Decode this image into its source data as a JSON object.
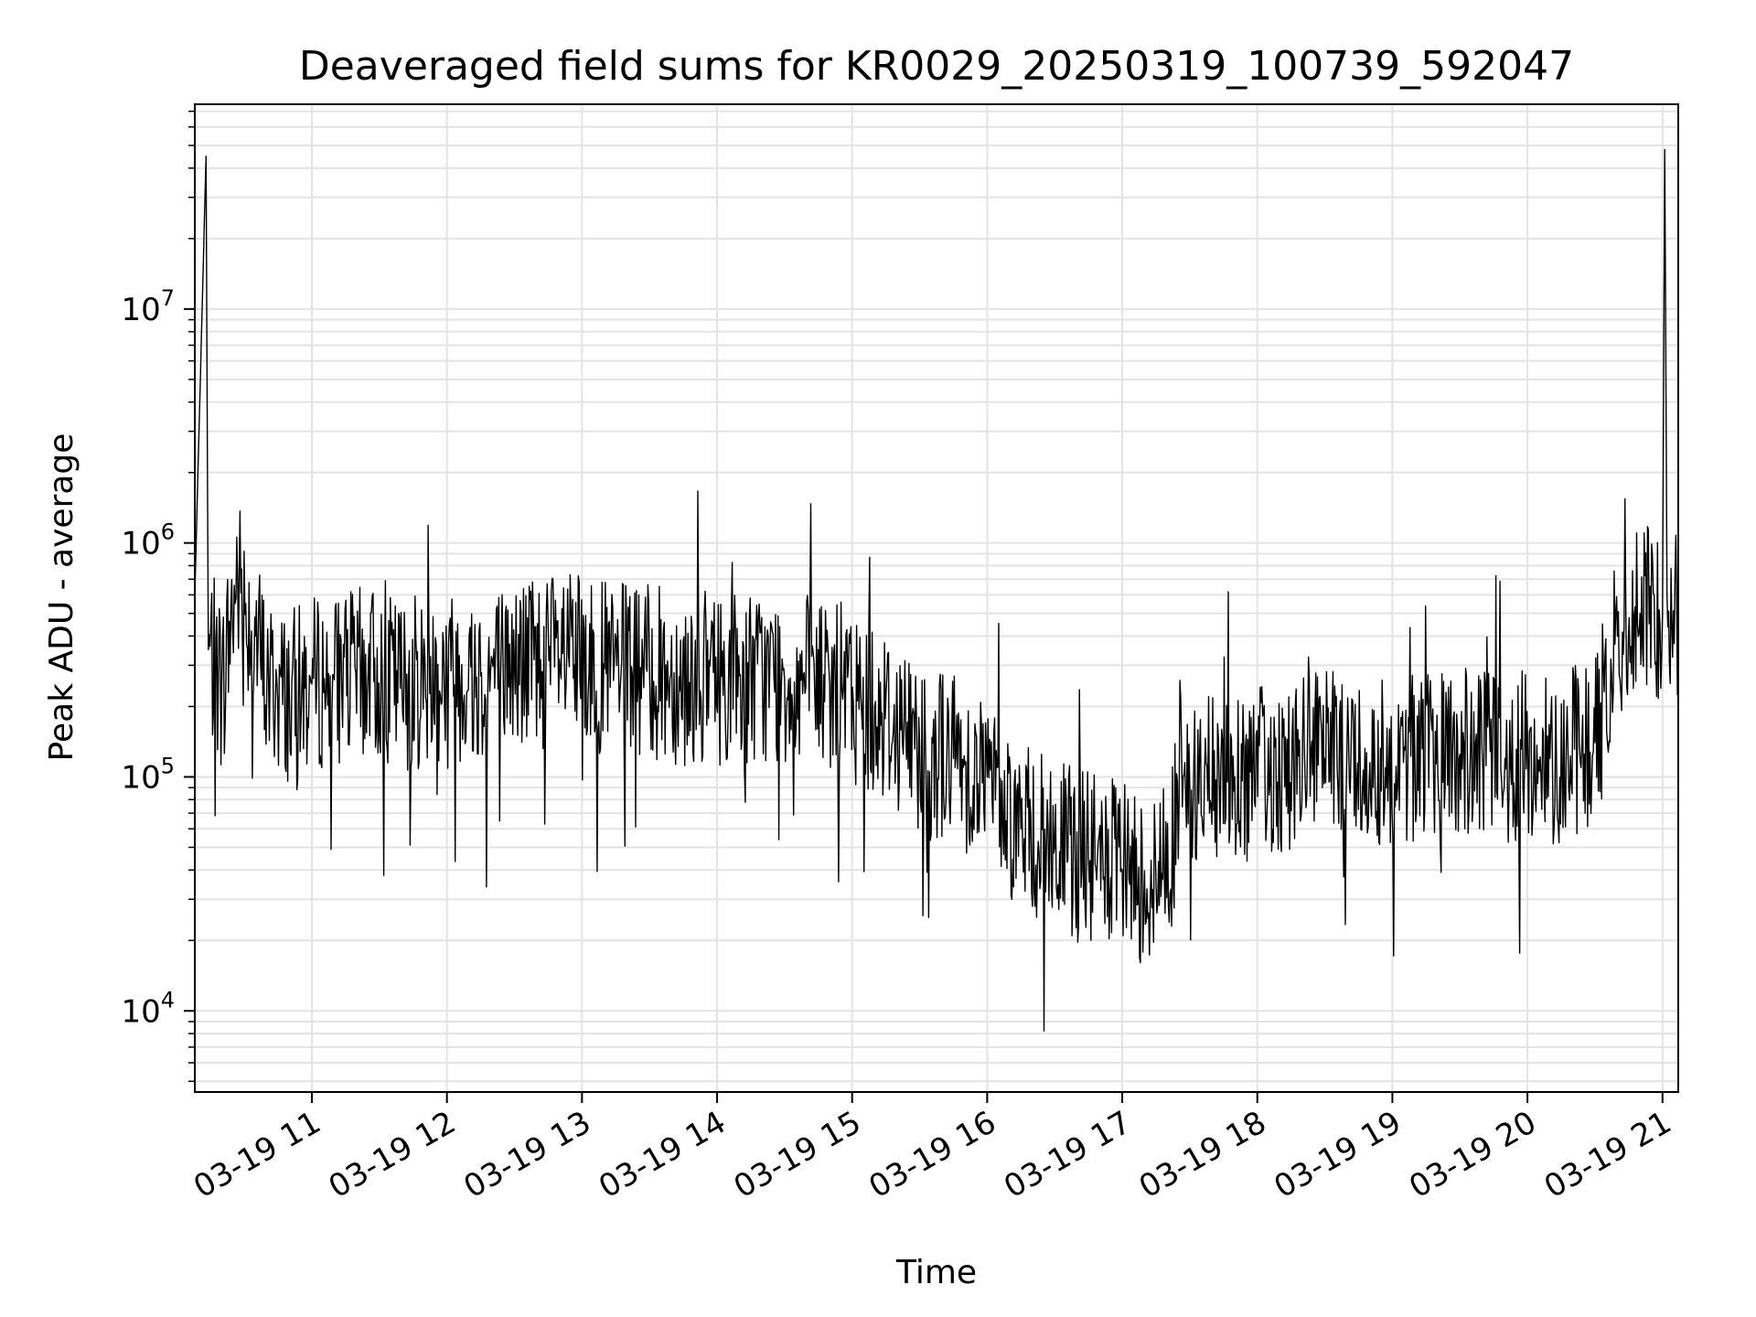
{
  "chart_data": {
    "type": "line",
    "title": "Deaveraged field sums for KR0029_20250319_100739_592047",
    "xlabel": "Time",
    "ylabel": "Peak ADU - average",
    "x_range": [
      "2025-03-19 10:08",
      "2025-03-19 21:07"
    ],
    "ylim": [
      4500,
      75000000
    ],
    "y_scale": "log",
    "grid": true,
    "x_ticks": [
      "03-19 11",
      "03-19 12",
      "03-19 13",
      "03-19 14",
      "03-19 15",
      "03-19 16",
      "03-19 17",
      "03-19 18",
      "03-19 19",
      "03-19 20",
      "03-19 21"
    ],
    "y_ticks": [
      {
        "base": "10",
        "exp": "4",
        "value": 10000
      },
      {
        "base": "10",
        "exp": "5",
        "value": 100000
      },
      {
        "base": "10",
        "exp": "6",
        "value": 1000000
      },
      {
        "base": "10",
        "exp": "7",
        "value": 10000000
      }
    ],
    "series": [
      {
        "color": "#000000",
        "x": [
          "2025-03-19 10:08",
          "2025-03-19 10:13",
          "2025-03-19 10:14",
          "2025-03-19 10:20",
          "2025-03-19 10:27",
          "2025-03-19 10:35",
          "2025-03-19 10:40",
          "2025-03-19 10:50",
          "2025-03-19 11:00",
          "2025-03-19 11:10",
          "2025-03-19 11:25",
          "2025-03-19 11:40",
          "2025-03-19 12:00",
          "2025-03-19 12:15",
          "2025-03-19 12:30",
          "2025-03-19 12:50",
          "2025-03-19 13:10",
          "2025-03-19 13:30",
          "2025-03-19 13:50",
          "2025-03-19 14:10",
          "2025-03-19 14:30",
          "2025-03-19 14:50",
          "2025-03-19 15:10",
          "2025-03-19 15:30",
          "2025-03-19 15:45",
          "2025-03-19 16:00",
          "2025-03-19 16:15",
          "2025-03-19 16:30",
          "2025-03-19 16:45",
          "2025-03-19 17:00",
          "2025-03-19 17:15",
          "2025-03-19 17:30",
          "2025-03-19 17:50",
          "2025-03-19 18:10",
          "2025-03-19 18:30",
          "2025-03-19 18:50",
          "2025-03-19 19:10",
          "2025-03-19 19:30",
          "2025-03-19 19:50",
          "2025-03-19 20:10",
          "2025-03-19 20:30",
          "2025-03-19 20:40",
          "2025-03-19 20:50",
          "2025-03-19 21:00",
          "2025-03-19 21:01",
          "2025-03-19 21:02",
          "2025-03-19 21:07"
        ],
        "y": [
          600000,
          45000000,
          350000,
          250000,
          700000,
          400000,
          250000,
          220000,
          250000,
          260000,
          280000,
          250000,
          280000,
          270000,
          300000,
          320000,
          290000,
          280000,
          260000,
          270000,
          260000,
          250000,
          200000,
          140000,
          120000,
          100000,
          60000,
          50000,
          45000,
          40000,
          35000,
          90000,
          100000,
          110000,
          120000,
          115000,
          120000,
          125000,
          120000,
          120000,
          140000,
          400000,
          500000,
          500000,
          48000000,
          600000,
          500000
        ]
      }
    ]
  }
}
